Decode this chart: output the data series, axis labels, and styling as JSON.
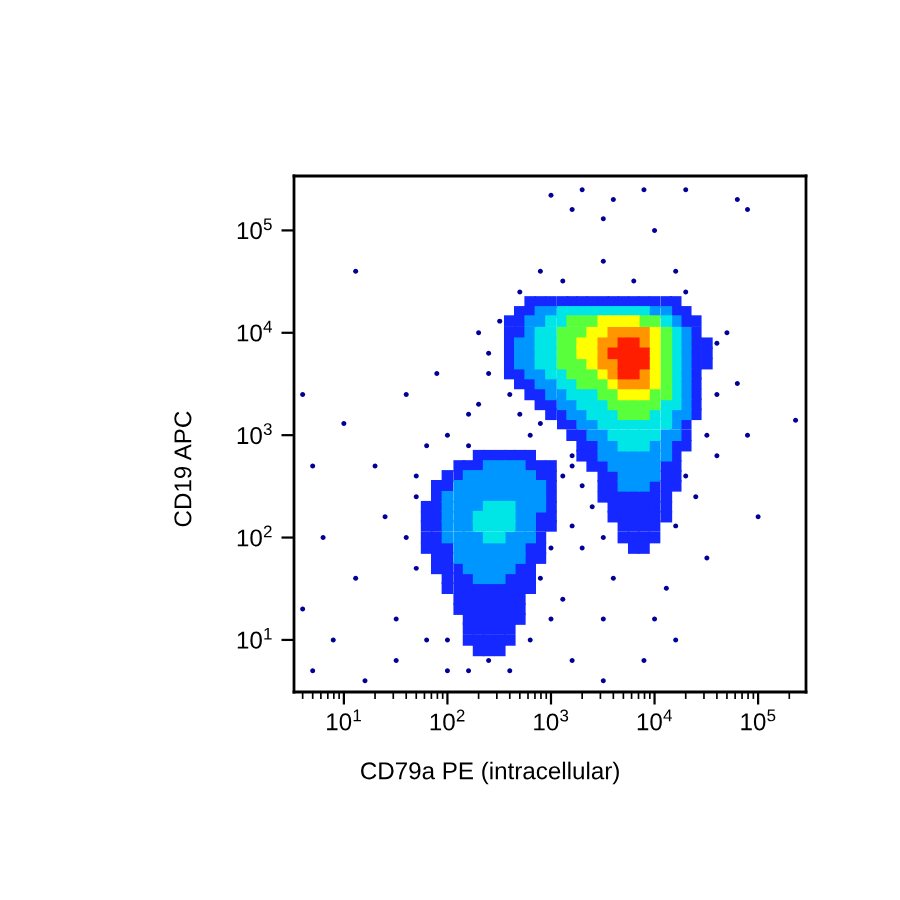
{
  "chart_data": {
    "type": "scatter",
    "xlabel": "CD79a PE (intracellular)",
    "ylabel": "CD19 APC",
    "log": "xy",
    "marker": "square",
    "xlim": [
      3.3,
      290000
    ],
    "ylim": [
      3.1,
      340000
    ],
    "xticks": [
      {
        "value": 10,
        "label": "10$^{1}$"
      },
      {
        "value": 100,
        "label": "10$^{2}$"
      },
      {
        "value": 1000,
        "label": "10$^{3}$"
      },
      {
        "value": 10000,
        "label": "10$^{4}$"
      },
      {
        "value": 100000,
        "label": "10$^{5}$"
      }
    ],
    "yticks": [
      {
        "value": 10,
        "label": "10$^{1}$"
      },
      {
        "value": 100,
        "label": "10$^{2}$"
      },
      {
        "value": 1000,
        "label": "10$^{3}$"
      },
      {
        "value": 10000,
        "label": "10$^{4}$"
      },
      {
        "value": 100000,
        "label": "10$^{5}$"
      }
    ],
    "series": [
      {
        "color": "#000099",
        "marker": "circle",
        "x": [
          1000,
          2000,
          4000,
          7900,
          20000,
          3200,
          63000,
          79000,
          1600,
          10000,
          13,
          160,
          63,
          250,
          200,
          790,
          3200,
          16000,
          50000,
          63000,
          40000,
          25000,
          79000,
          230000,
          630,
          1600,
          790,
          500,
          2000,
          400,
          2500,
          1600,
          2000,
          4000,
          13000,
          3200,
          16000,
          7900,
          10000,
          1000,
          1600,
          5.0,
          7.9,
          16,
          32,
          13,
          6.3,
          25,
          50,
          20,
          5.0,
          10,
          40,
          50,
          63,
          100,
          4.0,
          4.0,
          40,
          50,
          100,
          160,
          790,
          1000,
          1300,
          100,
          400,
          160,
          630,
          250,
          320,
          500,
          1300,
          6300,
          20000,
          40000,
          40000,
          32000,
          20000,
          1600,
          200,
          79,
          32,
          250,
          3200,
          32000,
          100000,
          3200,
          16000,
          1300
        ],
        "values": [
          220000,
          250000,
          200000,
          250000,
          250000,
          130000,
          200000,
          160000,
          160000,
          100000,
          40000,
          1600,
          790,
          4000,
          10000,
          40000,
          50000,
          40000,
          10000,
          3200,
          630,
          250,
          1000,
          1400,
          1000,
          500,
          1300,
          1600,
          320,
          2500,
          200,
          130,
          79,
          40,
          32,
          16,
          10,
          6.3,
          16,
          16,
          6.3,
          5.0,
          10,
          4.0,
          16,
          40,
          100,
          160,
          50,
          500,
          500,
          1300,
          2500,
          250,
          10,
          5.0,
          2500,
          20,
          100,
          400,
          1000,
          790,
          40,
          79,
          25,
          10,
          5.0,
          5.0,
          10,
          6300,
          13000,
          25000,
          32000,
          32000,
          25000,
          7900,
          2500,
          1000,
          400,
          630,
          2000,
          4000,
          6.3,
          6.3,
          4.0,
          63,
          160,
          100,
          130,
          400
        ]
      },
      {
        "color": "#1428ff",
        "x": [
          630,
          790,
          1000,
          1300,
          1600,
          2000,
          2500,
          3200,
          4000,
          5000,
          6300,
          7900,
          10000,
          13000,
          16000,
          500,
          630,
          16000,
          20000,
          400,
          500,
          20000,
          25000,
          400,
          500,
          25000,
          400,
          25000,
          32000,
          400,
          25000,
          32000,
          400,
          25000,
          32000,
          400,
          500,
          25000,
          500,
          630,
          25000,
          630,
          790,
          25000,
          790,
          1000,
          25000,
          1000,
          1300,
          25000,
          1300,
          1600,
          20000,
          1600,
          2000,
          20000,
          2000,
          2500,
          16000,
          20000,
          2000,
          2500,
          16000,
          2500,
          3200,
          13000,
          16000,
          3200,
          4000,
          13000,
          16000,
          3200,
          4000,
          10000,
          13000,
          16000,
          3200,
          4000,
          5000,
          6300,
          7900,
          10000,
          13000,
          4000,
          5000,
          6300,
          7900,
          10000,
          13000,
          4000,
          5000,
          6300,
          7900,
          10000,
          13000,
          5000,
          6300,
          7900,
          10000,
          5000,
          6300,
          7900,
          10000,
          6300,
          7900
        ],
        "values": [
          20000,
          20000,
          20000,
          20000,
          20000,
          20000,
          20000,
          20000,
          20000,
          20000,
          20000,
          20000,
          20000,
          20000,
          20000,
          16000,
          16000,
          16000,
          16000,
          13000,
          13000,
          13000,
          13000,
          10000,
          10000,
          10000,
          7900,
          7900,
          7900,
          6300,
          6300,
          6300,
          5000,
          5000,
          5000,
          4000,
          4000,
          4000,
          3200,
          3200,
          3200,
          2500,
          2500,
          2500,
          2000,
          2000,
          2000,
          1600,
          1600,
          1600,
          1300,
          1300,
          1300,
          1000,
          1000,
          1000,
          790,
          790,
          790,
          790,
          630,
          630,
          630,
          500,
          500,
          500,
          500,
          400,
          400,
          400,
          400,
          320,
          320,
          320,
          320,
          320,
          250,
          250,
          250,
          250,
          250,
          250,
          250,
          200,
          200,
          200,
          200,
          200,
          200,
          160,
          160,
          160,
          160,
          160,
          160,
          130,
          130,
          130,
          130,
          100,
          100,
          100,
          100,
          79,
          79
        ]
      },
      {
        "color": "#1428ff",
        "x": [
          200,
          250,
          320,
          400,
          500,
          630,
          130,
          160,
          200,
          630,
          790,
          1000,
          100,
          130,
          790,
          1000,
          79,
          100,
          1000,
          79,
          1000,
          63,
          79,
          1000,
          63,
          79,
          790,
          1000,
          63,
          79,
          790,
          1000,
          63,
          79,
          790,
          63,
          79,
          100,
          630,
          790,
          79,
          100,
          630,
          790,
          79,
          100,
          130,
          500,
          630,
          100,
          130,
          160,
          400,
          500,
          630,
          100,
          130,
          160,
          200,
          250,
          320,
          400,
          500,
          630,
          130,
          160,
          200,
          250,
          320,
          400,
          500,
          130,
          160,
          200,
          250,
          320,
          400,
          500,
          160,
          200,
          250,
          320,
          400,
          500,
          160,
          200,
          250,
          320,
          400,
          160,
          200,
          250,
          320,
          400,
          200,
          250,
          320
        ],
        "values": [
          630,
          630,
          630,
          630,
          630,
          630,
          500,
          500,
          500,
          500,
          500,
          500,
          400,
          400,
          400,
          400,
          320,
          320,
          320,
          250,
          250,
          200,
          200,
          200,
          160,
          160,
          160,
          160,
          130,
          130,
          130,
          130,
          100,
          100,
          100,
          79,
          79,
          79,
          79,
          79,
          63,
          63,
          63,
          63,
          50,
          50,
          50,
          50,
          50,
          40,
          40,
          40,
          40,
          40,
          40,
          32,
          32,
          32,
          32,
          32,
          32,
          32,
          32,
          32,
          25,
          25,
          25,
          25,
          25,
          25,
          25,
          20,
          20,
          20,
          20,
          20,
          20,
          20,
          16,
          16,
          16,
          16,
          16,
          16,
          13,
          13,
          13,
          13,
          13,
          10,
          10,
          10,
          10,
          10,
          7.9,
          7.9,
          7.9
        ]
      },
      {
        "color": "#0096ff",
        "x": [
          790,
          1000,
          10000,
          13000,
          630,
          790,
          16000,
          630,
          20000,
          500,
          630,
          20000,
          500,
          630,
          20000,
          500,
          630,
          20000,
          630,
          790,
          20000,
          790,
          1000,
          20000,
          1000,
          1300,
          20000,
          1300,
          1600,
          20000,
          1600,
          2000,
          16000,
          20000,
          2000,
          2500,
          16000,
          2500,
          3200,
          13000,
          16000,
          3200,
          4000,
          10000,
          13000,
          3200,
          4000,
          5000,
          6300,
          7900,
          10000,
          13000,
          4000,
          5000,
          6300,
          7900,
          10000,
          5000,
          6300,
          7900,
          10000,
          5000,
          6300,
          7900,
          250,
          320,
          400,
          500,
          160,
          200,
          250,
          320,
          400,
          500,
          630,
          130,
          160,
          200,
          250,
          320,
          400,
          500,
          630,
          790,
          100,
          130,
          160,
          200,
          250,
          320,
          400,
          500,
          630,
          790,
          100,
          130,
          160,
          200,
          500,
          630,
          790,
          100,
          130,
          160,
          500,
          630,
          100,
          130,
          160,
          500,
          630,
          100,
          130,
          160,
          200,
          400,
          500,
          630,
          130,
          160,
          200,
          250,
          320,
          400,
          500,
          130,
          160,
          200,
          250,
          320,
          400,
          500,
          160,
          200,
          250,
          320,
          400,
          200,
          250,
          320
        ],
        "values": [
          16000,
          16000,
          16000,
          16000,
          13000,
          13000,
          13000,
          10000,
          10000,
          7900,
          7900,
          7900,
          6300,
          6300,
          6300,
          5000,
          5000,
          5000,
          4000,
          4000,
          4000,
          3200,
          3200,
          3200,
          2500,
          2500,
          2500,
          2000,
          2000,
          2000,
          1600,
          1600,
          1600,
          1600,
          1300,
          1300,
          1300,
          1000,
          1000,
          1000,
          1000,
          790,
          790,
          790,
          790,
          630,
          630,
          630,
          630,
          630,
          630,
          630,
          500,
          500,
          500,
          500,
          500,
          400,
          400,
          400,
          400,
          320,
          320,
          320,
          500,
          500,
          500,
          500,
          400,
          400,
          400,
          400,
          400,
          400,
          400,
          320,
          320,
          320,
          320,
          320,
          320,
          320,
          320,
          320,
          250,
          250,
          250,
          250,
          250,
          250,
          250,
          250,
          250,
          250,
          200,
          200,
          200,
          200,
          200,
          200,
          200,
          160,
          160,
          160,
          160,
          160,
          130,
          130,
          130,
          130,
          130,
          100,
          100,
          100,
          100,
          100,
          100,
          100,
          79,
          79,
          79,
          79,
          79,
          79,
          79,
          63,
          63,
          63,
          63,
          63,
          63,
          63,
          50,
          50,
          50,
          50,
          50,
          40,
          40,
          40
        ]
      },
      {
        "color": "#00e6e6",
        "x": [
          1300,
          1600,
          2000,
          2500,
          3200,
          4000,
          5000,
          6300,
          7900,
          1000,
          1300,
          13000,
          790,
          1000,
          16000,
          790,
          1000,
          16000,
          790,
          1000,
          16000,
          790,
          1000,
          16000,
          1000,
          1300,
          16000,
          1300,
          1600,
          16000,
          1600,
          2000,
          2500,
          16000,
          2000,
          2500,
          3200,
          13000,
          16000,
          2500,
          3200,
          4000,
          10000,
          13000,
          3200,
          4000,
          5000,
          6300,
          7900,
          10000,
          13000,
          4000,
          5000,
          6300,
          7900,
          10000,
          5000,
          6300,
          7900,
          250,
          320,
          400,
          200,
          250,
          320,
          400,
          200,
          250,
          320,
          400,
          250,
          320
        ],
        "values": [
          16000,
          16000,
          16000,
          16000,
          16000,
          16000,
          16000,
          16000,
          16000,
          13000,
          13000,
          13000,
          10000,
          10000,
          10000,
          7900,
          7900,
          7900,
          6300,
          6300,
          6300,
          5000,
          5000,
          5000,
          4000,
          4000,
          4000,
          3200,
          3200,
          3200,
          2500,
          2500,
          2500,
          2500,
          2000,
          2000,
          2000,
          2000,
          2000,
          1600,
          1600,
          1600,
          1600,
          1600,
          1300,
          1300,
          1300,
          1300,
          1300,
          1300,
          1300,
          1000,
          1000,
          1000,
          1000,
          1000,
          790,
          790,
          790,
          200,
          200,
          200,
          160,
          160,
          160,
          160,
          130,
          130,
          130,
          130,
          100,
          100
        ]
      },
      {
        "color": "#5aff3c",
        "x": [
          1600,
          2000,
          2500,
          7900,
          10000,
          1300,
          1600,
          2000,
          13000,
          1300,
          1600,
          13000,
          1300,
          1600,
          13000,
          1300,
          1600,
          2000,
          13000,
          1600,
          2000,
          2500,
          13000,
          2000,
          2500,
          3200,
          13000,
          3200,
          4000,
          10000,
          13000,
          4000,
          5000,
          6300,
          7900,
          10000,
          5000,
          6300,
          7900
        ],
        "values": [
          13000,
          13000,
          13000,
          13000,
          13000,
          10000,
          10000,
          10000,
          10000,
          7900,
          7900,
          7900,
          6300,
          6300,
          6300,
          5000,
          5000,
          5000,
          5000,
          4000,
          4000,
          4000,
          4000,
          3200,
          3200,
          3200,
          3200,
          2500,
          2500,
          2500,
          2500,
          2000,
          2000,
          2000,
          2000,
          2000,
          1600,
          1600,
          1600
        ]
      },
      {
        "color": "#ffff00",
        "x": [
          3200,
          4000,
          5000,
          6300,
          2500,
          3200,
          10000,
          2000,
          2500,
          10000,
          2000,
          2500,
          10000,
          2500,
          10000,
          3200,
          10000,
          4000,
          10000,
          5000,
          6300,
          7900
        ],
        "values": [
          13000,
          13000,
          13000,
          13000,
          10000,
          10000,
          10000,
          7900,
          7900,
          7900,
          6300,
          6300,
          6300,
          5000,
          5000,
          4000,
          4000,
          3200,
          3200,
          2500,
          2500,
          2500
        ]
      },
      {
        "color": "#ff9600",
        "x": [
          4000,
          5000,
          6300,
          7900,
          3200,
          4000,
          7900,
          3200,
          3200,
          4000,
          4000,
          7900,
          5000,
          6300,
          7900
        ],
        "values": [
          10000,
          10000,
          10000,
          10000,
          7900,
          7900,
          7900,
          6300,
          5000,
          5000,
          4000,
          4000,
          3200,
          3200,
          3200
        ]
      },
      {
        "color": "#ff1e00",
        "x": [
          5000,
          6300,
          4000,
          5000,
          6300,
          7900,
          5000,
          6300,
          7900,
          5000,
          6300
        ],
        "values": [
          7900,
          7900,
          6300,
          6300,
          6300,
          6300,
          5000,
          5000,
          5000,
          4000,
          4000
        ]
      }
    ]
  }
}
